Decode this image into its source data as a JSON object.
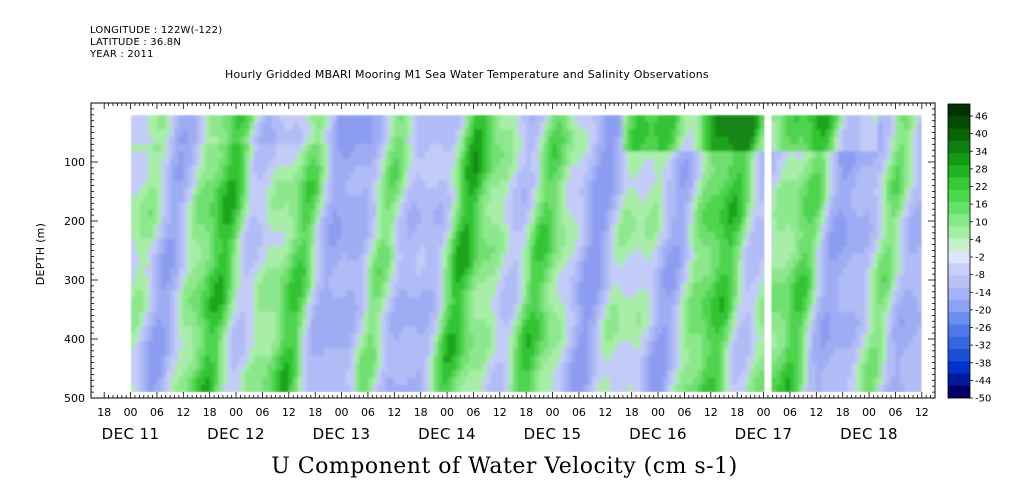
{
  "header": {
    "longitude": "LONGITUDE : 122W(-122)",
    "latitude": "LATITUDE : 36.8N",
    "year": "YEAR : 2011"
  },
  "chart_data": {
    "type": "heatmap",
    "title": "Hourly Gridded MBARI Mooring M1 Sea Water Temperature and Salinity Observations",
    "xlabel": "U Component of Water Velocity (cm s-1)",
    "ylabel": "DEPTH (m)",
    "y_range": [
      0,
      500
    ],
    "y_inverted": true,
    "y_ticks": [
      100,
      200,
      300,
      400,
      500
    ],
    "data_depth_range": [
      20,
      490
    ],
    "x_range_hours": [
      -9,
      183
    ],
    "data_time_range_hours": [
      0,
      180
    ],
    "x_hour_ticks": [
      {
        "h": -6,
        "label": "18"
      },
      {
        "h": 0,
        "label": "00"
      },
      {
        "h": 6,
        "label": "06"
      },
      {
        "h": 12,
        "label": "12"
      },
      {
        "h": 18,
        "label": "18"
      },
      {
        "h": 24,
        "label": "00"
      },
      {
        "h": 30,
        "label": "06"
      },
      {
        "h": 36,
        "label": "12"
      },
      {
        "h": 42,
        "label": "18"
      },
      {
        "h": 48,
        "label": "00"
      },
      {
        "h": 54,
        "label": "06"
      },
      {
        "h": 60,
        "label": "12"
      },
      {
        "h": 66,
        "label": "18"
      },
      {
        "h": 72,
        "label": "00"
      },
      {
        "h": 78,
        "label": "06"
      },
      {
        "h": 84,
        "label": "12"
      },
      {
        "h": 90,
        "label": "18"
      },
      {
        "h": 96,
        "label": "00"
      },
      {
        "h": 102,
        "label": "06"
      },
      {
        "h": 108,
        "label": "12"
      },
      {
        "h": 114,
        "label": "18"
      },
      {
        "h": 120,
        "label": "00"
      },
      {
        "h": 126,
        "label": "06"
      },
      {
        "h": 132,
        "label": "12"
      },
      {
        "h": 138,
        "label": "18"
      },
      {
        "h": 144,
        "label": "00"
      },
      {
        "h": 150,
        "label": "06"
      },
      {
        "h": 156,
        "label": "12"
      },
      {
        "h": 162,
        "label": "18"
      },
      {
        "h": 168,
        "label": "00"
      },
      {
        "h": 174,
        "label": "06"
      },
      {
        "h": 180,
        "label": "12"
      }
    ],
    "x_day_labels": [
      {
        "h": 0,
        "label": "DEC 11"
      },
      {
        "h": 24,
        "label": "DEC 12"
      },
      {
        "h": 48,
        "label": "DEC 13"
      },
      {
        "h": 72,
        "label": "DEC 14"
      },
      {
        "h": 96,
        "label": "DEC 15"
      },
      {
        "h": 120,
        "label": "DEC 16"
      },
      {
        "h": 144,
        "label": "DEC 17"
      },
      {
        "h": 168,
        "label": "DEC 18"
      }
    ],
    "colorbar": {
      "min": -50,
      "max": 50,
      "step": 3,
      "labels": [
        "46",
        "40",
        "34",
        "28",
        "22",
        "16",
        "10",
        "4",
        "-2",
        "-8",
        "-14",
        "-20",
        "-26",
        "-32",
        "-38",
        "-44",
        "-50"
      ],
      "colors": [
        "#000066",
        "#001a9e",
        "#0033cc",
        "#1a4fd6",
        "#3366e0",
        "#4d7ae6",
        "#6b8ff0",
        "#8aa4f5",
        "#a3b3f5",
        "#b8c2f5",
        "#c8d0f7",
        "#dfe4fa",
        "#c8f0c8",
        "#a6eea6",
        "#86ea86",
        "#66e266",
        "#4cd94c",
        "#33cc33",
        "#1fb31f",
        "#139913",
        "#0d800d",
        "#066606",
        "#024d02",
        "#003300"
      ],
      "negative_color": "#a9b7f2",
      "positive_color": "#70e070"
    },
    "gaps": [
      {
        "type": "column",
        "time_hours": [
          144.2,
          145.8
        ],
        "depth_range": [
          20,
          490
        ]
      }
    ],
    "value_pattern_description": "Alternating vertical bands of negative (blue) and positive (green) U-velocity through the full water column; strongest positive values (dark green) near surface around Dec 16-17."
  }
}
